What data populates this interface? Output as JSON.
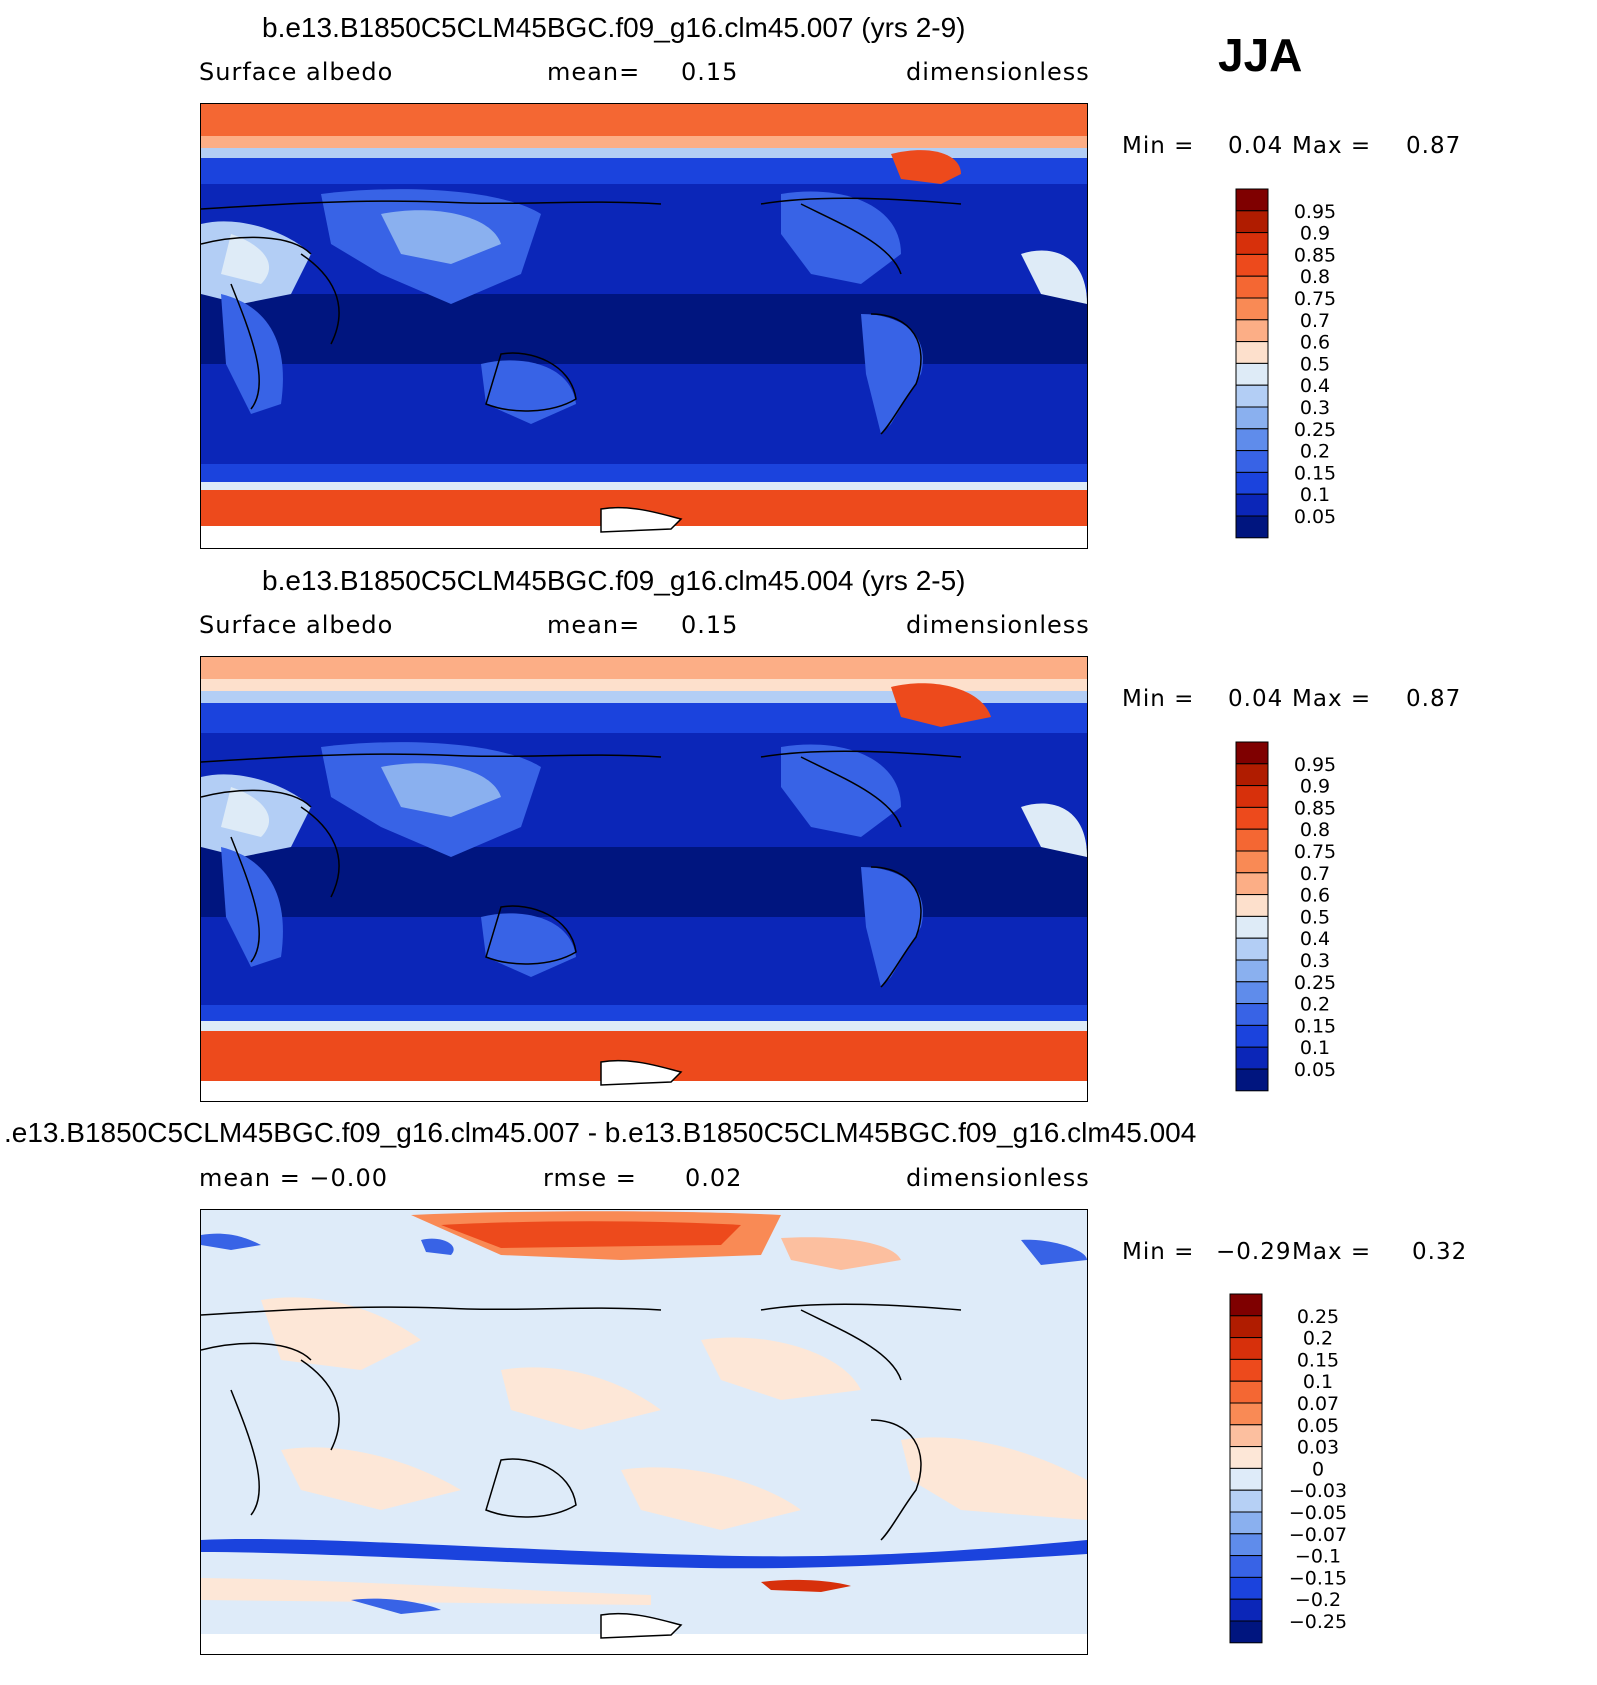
{
  "season": "JJA",
  "panels": [
    {
      "title": "b.e13.B1850C5CLM45BGC.f09_g16.clm45.007 (yrs 2-9)",
      "left": "Surface albedo",
      "middle_label": "mean=",
      "middle_value": "0.15",
      "right": "dimensionless",
      "min_label": "Min =",
      "min_value": "0.04",
      "max_label": "Max =",
      "max_value": "0.87",
      "colorbar": {
        "labels": [
          "0.95",
          "0.9",
          "0.85",
          "0.8",
          "0.75",
          "0.7",
          "0.6",
          "0.5",
          "0.4",
          "0.3",
          "0.25",
          "0.2",
          "0.15",
          "0.1",
          "0.05"
        ],
        "colors": [
          "#7f0000",
          "#b01c00",
          "#d7300b",
          "#ed4a1c",
          "#f46733",
          "#f98a55",
          "#fcae86",
          "#fde0cc",
          "#deebf7",
          "#b3cef5",
          "#8ab0ef",
          "#5f8ceb",
          "#3863e6",
          "#1b43dd",
          "#0b26b8",
          "#00157f"
        ]
      }
    },
    {
      "title": "b.e13.B1850C5CLM45BGC.f09_g16.clm45.004 (yrs 2-5)",
      "left": "Surface albedo",
      "middle_label": "mean=",
      "middle_value": "0.15",
      "right": "dimensionless",
      "min_label": "Min =",
      "min_value": "0.04",
      "max_label": "Max =",
      "max_value": "0.87",
      "colorbar": {
        "labels": [
          "0.95",
          "0.9",
          "0.85",
          "0.8",
          "0.75",
          "0.7",
          "0.6",
          "0.5",
          "0.4",
          "0.3",
          "0.25",
          "0.2",
          "0.15",
          "0.1",
          "0.05"
        ],
        "colors": [
          "#7f0000",
          "#b01c00",
          "#d7300b",
          "#ed4a1c",
          "#f46733",
          "#f98a55",
          "#fcae86",
          "#fde0cc",
          "#deebf7",
          "#b3cef5",
          "#8ab0ef",
          "#5f8ceb",
          "#3863e6",
          "#1b43dd",
          "#0b26b8",
          "#00157f"
        ]
      }
    },
    {
      "title": ".e13.B1850C5CLM45BGC.f09_g16.clm45.007 - b.e13.B1850C5CLM45BGC.f09_g16.clm45.004",
      "left": "mean =  −0.00",
      "middle_label": "rmse =",
      "middle_value": "0.02",
      "right": "dimensionless",
      "min_label": "Min =",
      "min_value": "−0.29",
      "max_label": "Max =",
      "max_value": "0.32",
      "colorbar": {
        "labels": [
          "0.25",
          "0.2",
          "0.15",
          "0.1",
          "0.07",
          "0.05",
          "0.03",
          "0",
          "−0.03",
          "−0.05",
          "−0.07",
          "−0.1",
          "−0.15",
          "−0.2",
          "−0.25"
        ],
        "colors": [
          "#7f0000",
          "#b01c00",
          "#d7300b",
          "#ed4a1c",
          "#f46733",
          "#f98a55",
          "#fcbf9f",
          "#fde7d7",
          "#deebf9",
          "#b6d0f5",
          "#8ab0ef",
          "#5f8ceb",
          "#3863e6",
          "#1b43dd",
          "#0b26b8",
          "#00157f"
        ]
      }
    }
  ],
  "chart_data": [
    {
      "type": "heatmap",
      "title": "b.e13.B1850C5CLM45BGC.f09_g16.clm45.007 (yrs 2-9)",
      "variable": "Surface albedo",
      "units": "dimensionless",
      "season": "JJA",
      "mean": 0.15,
      "min": 0.04,
      "max": 0.87,
      "contour_levels": [
        0.05,
        0.1,
        0.15,
        0.2,
        0.25,
        0.3,
        0.4,
        0.5,
        0.6,
        0.7,
        0.75,
        0.8,
        0.85,
        0.9,
        0.95
      ]
    },
    {
      "type": "heatmap",
      "title": "b.e13.B1850C5CLM45BGC.f09_g16.clm45.004 (yrs 2-5)",
      "variable": "Surface albedo",
      "units": "dimensionless",
      "season": "JJA",
      "mean": 0.15,
      "min": 0.04,
      "max": 0.87,
      "contour_levels": [
        0.05,
        0.1,
        0.15,
        0.2,
        0.25,
        0.3,
        0.4,
        0.5,
        0.6,
        0.7,
        0.75,
        0.8,
        0.85,
        0.9,
        0.95
      ]
    },
    {
      "type": "heatmap",
      "title": ".e13.B1850C5CLM45BGC.f09_g16.clm45.007 - b.e13.B1850C5CLM45BGC.f09_g16.clm45.004",
      "units": "dimensionless",
      "season": "JJA",
      "mean": -0.0,
      "rmse": 0.02,
      "min": -0.29,
      "max": 0.32,
      "contour_levels": [
        -0.25,
        -0.2,
        -0.15,
        -0.1,
        -0.07,
        -0.05,
        -0.03,
        0,
        0.03,
        0.05,
        0.07,
        0.1,
        0.15,
        0.2,
        0.25
      ]
    }
  ]
}
